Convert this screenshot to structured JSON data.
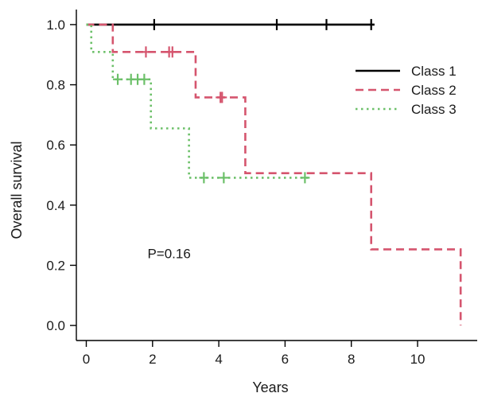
{
  "chart_data": {
    "type": "line",
    "subtype": "kaplan-meier-step",
    "xlabel": "Years",
    "ylabel": "Overall survival",
    "xlim": [
      -0.3,
      11.8
    ],
    "ylim": [
      -0.05,
      1.05
    ],
    "xticks": [
      0,
      2,
      4,
      6,
      8,
      10
    ],
    "yticks": [
      0.0,
      0.2,
      0.4,
      0.6,
      0.8,
      1.0
    ],
    "xtick_labels": [
      "0",
      "2",
      "4",
      "6",
      "8",
      "10"
    ],
    "ytick_labels": [
      "0.0",
      "0.2",
      "0.4",
      "0.6",
      "0.8",
      "1.0"
    ],
    "grid": false,
    "legend_position": "top-right",
    "annotation": "P=0.16",
    "annotation_at": [
      2.5,
      0.24
    ],
    "series": [
      {
        "name": "Class 1",
        "color": "#000000",
        "style": "solid",
        "steps": [
          [
            0,
            1.0
          ],
          [
            8.7,
            1.0
          ]
        ],
        "censored": [
          [
            2.05,
            1.0
          ],
          [
            5.75,
            1.0
          ],
          [
            7.25,
            1.0
          ],
          [
            8.6,
            1.0
          ]
        ]
      },
      {
        "name": "Class 2",
        "color": "#d5556e",
        "style": "dashed",
        "steps": [
          [
            0,
            1.0
          ],
          [
            0.8,
            0.909
          ],
          [
            3.3,
            0.758
          ],
          [
            4.8,
            0.506
          ],
          [
            8.6,
            0.253
          ],
          [
            11.3,
            0.0
          ]
        ],
        "censored": [
          [
            1.8,
            0.909
          ],
          [
            2.5,
            0.909
          ],
          [
            2.6,
            0.909
          ],
          [
            4.05,
            0.758
          ],
          [
            4.1,
            0.758
          ]
        ]
      },
      {
        "name": "Class 3",
        "color": "#6cc069",
        "style": "dotted",
        "steps": [
          [
            0,
            1.0
          ],
          [
            0.15,
            0.909
          ],
          [
            0.8,
            0.818
          ],
          [
            1.95,
            0.655
          ],
          [
            3.1,
            0.491
          ],
          [
            6.7,
            0.491
          ]
        ],
        "censored": [
          [
            0.95,
            0.818
          ],
          [
            1.35,
            0.818
          ],
          [
            1.55,
            0.818
          ],
          [
            1.75,
            0.818
          ],
          [
            3.55,
            0.491
          ],
          [
            4.15,
            0.491
          ],
          [
            6.6,
            0.491
          ]
        ]
      }
    ]
  }
}
